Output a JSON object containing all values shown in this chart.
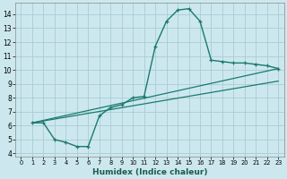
{
  "xlabel": "Humidex (Indice chaleur)",
  "background_color": "#cce8ee",
  "grid_color": "#aaccd4",
  "line_color": "#1a7a6e",
  "xlim": [
    -0.5,
    23.5
  ],
  "ylim": [
    3.8,
    14.8
  ],
  "xticks": [
    0,
    1,
    2,
    3,
    4,
    5,
    6,
    7,
    8,
    9,
    10,
    11,
    12,
    13,
    14,
    15,
    16,
    17,
    18,
    19,
    20,
    21,
    22,
    23
  ],
  "yticks": [
    4,
    5,
    6,
    7,
    8,
    9,
    10,
    11,
    12,
    13,
    14
  ],
  "curve_x": [
    1,
    2,
    3,
    4,
    5,
    6,
    7,
    8,
    9,
    10,
    11,
    12,
    13,
    14,
    15,
    16,
    17,
    18,
    19,
    20,
    21,
    22,
    23
  ],
  "curve_y": [
    6.2,
    6.2,
    5.0,
    4.8,
    4.5,
    4.5,
    6.7,
    7.3,
    7.5,
    8.0,
    8.1,
    11.7,
    13.5,
    14.3,
    14.4,
    13.5,
    10.7,
    10.6,
    10.5,
    10.5,
    10.4,
    10.3,
    10.1
  ],
  "line1_x": [
    1,
    23
  ],
  "line1_y": [
    6.2,
    10.1
  ],
  "line2_x": [
    1,
    23
  ],
  "line2_y": [
    6.2,
    9.2
  ]
}
